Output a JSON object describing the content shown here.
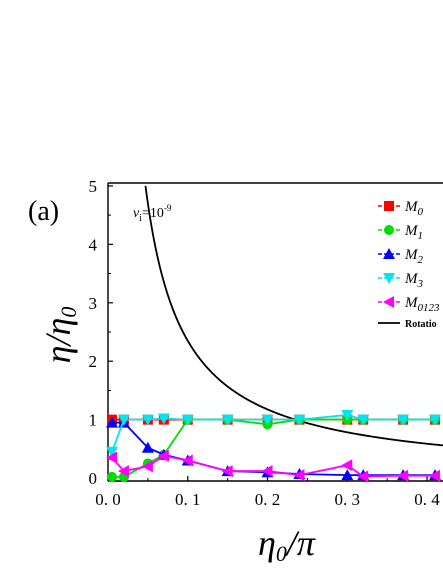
{
  "chart_data": {
    "type": "line",
    "panel_label": "(a)",
    "annotation": {
      "symbol": "v",
      "subscript": "i",
      "text": "=10",
      "superscript": "-9"
    },
    "xlabel": {
      "main": "η",
      "sub": "0",
      "rest": "/π"
    },
    "ylabel": {
      "main": "η",
      "rest": "/η",
      "sub": "0"
    },
    "xlim": [
      0.0,
      0.42
    ],
    "ylim": [
      -0.05,
      5.05
    ],
    "xticks": [
      0.0,
      0.1,
      0.2,
      0.3,
      0.4
    ],
    "xtick_labels": [
      "0. 0",
      "0. 1",
      "0. 2",
      "0. 3",
      "0. 4"
    ],
    "yticks": [
      0,
      1,
      2,
      3,
      4,
      5
    ],
    "ytick_labels": [
      "0",
      "1",
      "2",
      "3",
      "4",
      "5"
    ],
    "series": [
      {
        "name": "M",
        "sub": "0",
        "color": "#ff0000",
        "marker": "square",
        "x": [
          0.005,
          0.02,
          0.05,
          0.07,
          0.1,
          0.15,
          0.2,
          0.24,
          0.3,
          0.32,
          0.37,
          0.41
        ],
        "y": [
          1.0,
          1.0,
          1.0,
          1.0,
          1.0,
          1.0,
          1.0,
          1.0,
          1.0,
          1.0,
          1.0,
          1.0
        ]
      },
      {
        "name": "M",
        "sub": "1",
        "color": "#00dd00",
        "marker": "circle",
        "x": [
          0.005,
          0.02,
          0.05,
          0.07,
          0.1,
          0.15,
          0.2,
          0.24,
          0.3,
          0.32,
          0.37,
          0.41
        ],
        "y": [
          0.02,
          0.02,
          0.25,
          0.4,
          1.0,
          1.0,
          0.92,
          1.0,
          1.0,
          1.0,
          1.0,
          1.0
        ]
      },
      {
        "name": "M",
        "sub": "2",
        "color": "#0000ff",
        "marker": "triangle-up",
        "x": [
          0.005,
          0.02,
          0.05,
          0.07,
          0.1,
          0.15,
          0.2,
          0.24,
          0.3,
          0.32,
          0.37,
          0.41
        ],
        "y": [
          0.95,
          0.95,
          0.52,
          0.4,
          0.3,
          0.12,
          0.1,
          0.07,
          0.05,
          0.05,
          0.05,
          0.05
        ]
      },
      {
        "name": "M",
        "sub": "3",
        "color": "#00e5ee",
        "marker": "triangle-down",
        "x": [
          0.005,
          0.02,
          0.05,
          0.07,
          0.1,
          0.15,
          0.2,
          0.24,
          0.3,
          0.32,
          0.37,
          0.41
        ],
        "y": [
          0.45,
          1.0,
          1.0,
          1.02,
          1.0,
          1.0,
          1.0,
          1.0,
          1.08,
          1.0,
          1.0,
          1.0
        ]
      },
      {
        "name": "M",
        "sub": "0123",
        "color": "#ff00ff",
        "marker": "triangle-left",
        "x": [
          0.005,
          0.02,
          0.05,
          0.07,
          0.1,
          0.15,
          0.2,
          0.24,
          0.3,
          0.32,
          0.37,
          0.41
        ],
        "y": [
          0.35,
          0.12,
          0.2,
          0.38,
          0.3,
          0.12,
          0.12,
          0.05,
          0.22,
          0.03,
          0.04,
          0.04
        ]
      }
    ],
    "curve": {
      "name": "Rotatio",
      "color": "#000000",
      "coefficient": 0.235,
      "x_start": 0.047,
      "x_end": 0.42
    },
    "legend": {
      "placement": "top-right"
    }
  }
}
